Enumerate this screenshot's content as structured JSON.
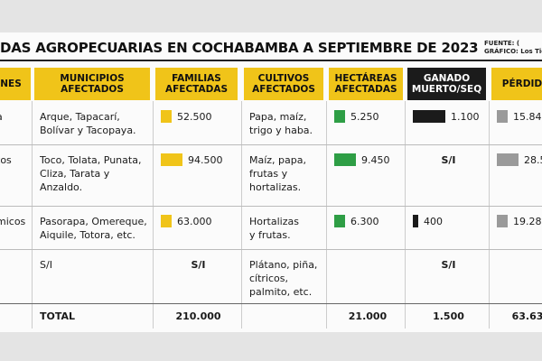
{
  "header": {
    "title": "DAS AGROPECUARIAS EN COCHABAMBA A SEPTIEMBRE DE 2023",
    "source": "FUENTE: (",
    "credit": "GRÁFICO: Los Tiem"
  },
  "table": {
    "columns": [
      "NES",
      "MUNICIPIOS\nAFECTADOS",
      "FAMILIAS\nAFECTADAS",
      "CULTIVOS\nAFECTADOS",
      "HECTÁREAS\nAFECTADAS",
      "GANADO\nMUERTO/SEQ",
      "PÉRDIDA"
    ],
    "rows": [
      [
        "a",
        "Arque, Tapacarí,\nBolívar y Tacopaya.",
        "52.500",
        "Papa, maíz,\ntrigo y haba.",
        "5.250",
        "1.100",
        "15.84"
      ],
      [
        "tos",
        "Toco, Tolata, Punata,\nCliza, Tarata y\nAnzaldo.",
        "94.500",
        "Maíz, papa,\nfrutas y\nhortalizas.",
        "9.450",
        "S/I",
        "28.5"
      ],
      [
        "micos",
        "Pasorapa, Omereque,\nAiquile, Totora, etc.",
        "63.000",
        "Hortalizas\ny frutas.",
        "6.300",
        "400",
        "19.28"
      ],
      [
        "",
        "S/I",
        "S/I",
        "Plátano, piña,\ncítricos,\npalmito, etc.",
        "",
        "S/I",
        ""
      ]
    ],
    "total": [
      "",
      "TOTAL",
      "210.000",
      "",
      "21.000",
      "1.500",
      "63.63"
    ]
  }
}
